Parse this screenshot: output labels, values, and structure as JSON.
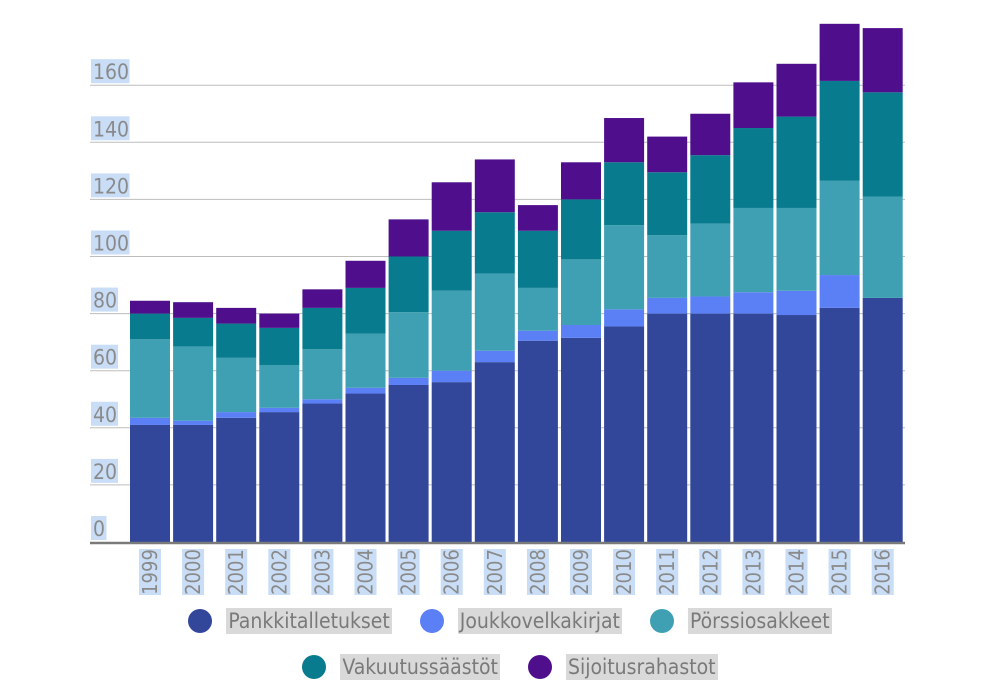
{
  "chart_data": {
    "type": "bar",
    "stacked": true,
    "title": "",
    "xlabel": "",
    "ylabel": "",
    "ylim": [
      0,
      180
    ],
    "yticks": [
      0,
      20,
      40,
      60,
      80,
      100,
      120,
      140,
      160
    ],
    "grid": true,
    "legend_position": "bottom",
    "categories": [
      "1999",
      "2000",
      "2001",
      "2002",
      "2003",
      "2004",
      "2005",
      "2006",
      "2007",
      "2008",
      "2009",
      "2010",
      "2011",
      "2012",
      "2013",
      "2014",
      "2015",
      "2016"
    ],
    "series": [
      {
        "name": "Pankkitalletukset",
        "color": "#33479a",
        "values": [
          41,
          41,
          43.5,
          45.5,
          48.5,
          52,
          55,
          56,
          63,
          70.5,
          71.5,
          75.5,
          80,
          80,
          80,
          79.5,
          82,
          85.5
        ]
      },
      {
        "name": "Joukkovelkakirjat",
        "color": "#5b7ff5",
        "values": [
          2.5,
          1.5,
          2,
          1.5,
          1.5,
          2,
          2.5,
          4,
          4,
          3.5,
          4.5,
          6,
          5.5,
          6,
          7.5,
          8.5,
          11.5,
          0
        ]
      },
      {
        "name": "Pörssiosakkeet",
        "color": "#3ea0b2",
        "values": [
          27.5,
          26,
          19,
          15,
          17.5,
          19,
          23,
          28,
          27,
          15,
          23,
          29.5,
          22,
          25.5,
          29.5,
          29,
          33,
          35.5
        ]
      },
      {
        "name": "Vakuutussäästöt",
        "color": "#087c8e",
        "values": [
          9,
          10,
          12,
          13,
          14.5,
          16,
          19.5,
          21,
          21.5,
          20,
          21,
          22,
          22,
          24,
          28,
          32,
          35,
          36.5
        ]
      },
      {
        "name": "Sijoitusrahastot",
        "color": "#4f0f8c",
        "values": [
          4.5,
          5.5,
          5.5,
          5,
          6.5,
          9.5,
          13,
          17,
          18.5,
          9,
          13,
          15.5,
          12.5,
          14.5,
          16,
          18.5,
          20,
          22.5
        ]
      }
    ]
  }
}
